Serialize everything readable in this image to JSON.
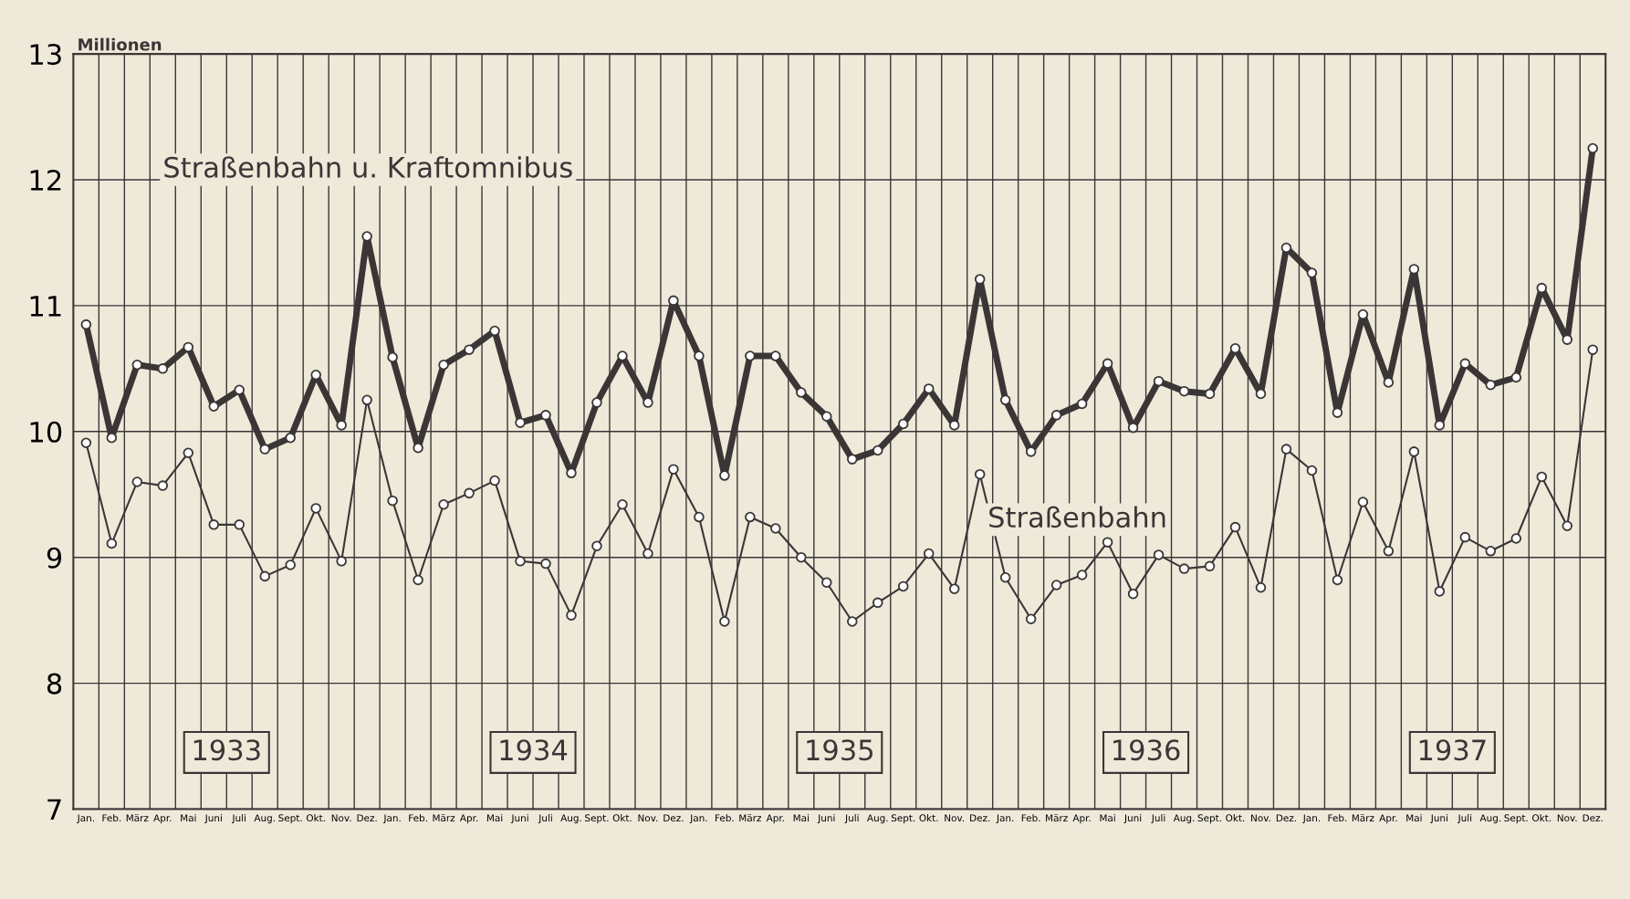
{
  "chart_data": {
    "type": "line",
    "ylabel": "Millionen",
    "categories": [
      "Jan.",
      "Feb.",
      "März",
      "Apr.",
      "Mai",
      "Juni",
      "Juli",
      "Aug.",
      "Sept.",
      "Okt.",
      "Nov.",
      "Dez.",
      "Jan.",
      "Feb.",
      "März",
      "Apr.",
      "Mai",
      "Juni",
      "Juli",
      "Aug.",
      "Sept.",
      "Okt.",
      "Nov.",
      "Dez.",
      "Jan.",
      "Feb.",
      "März",
      "Apr.",
      "Mai",
      "Juni",
      "Juli",
      "Aug.",
      "Sept.",
      "Okt.",
      "Nov.",
      "Dez.",
      "Jan.",
      "Feb.",
      "März",
      "Apr.",
      "Mai",
      "Juni",
      "Juli",
      "Aug.",
      "Sept.",
      "Okt.",
      "Nov.",
      "Dez.",
      "Jan.",
      "Feb.",
      "März",
      "Apr.",
      "Mai",
      "Juni",
      "Juli",
      "Aug.",
      "Sept.",
      "Okt.",
      "Nov.",
      "Dez."
    ],
    "series": [
      {
        "name": "Straßenbahn u. Kraftomnibus",
        "color": "#3b3636",
        "values": [
          10.85,
          9.95,
          10.53,
          10.5,
          10.67,
          10.2,
          10.33,
          9.86,
          9.95,
          10.45,
          10.05,
          11.55,
          10.59,
          9.87,
          10.53,
          10.65,
          10.8,
          10.07,
          10.13,
          9.67,
          10.23,
          10.6,
          10.23,
          11.04,
          10.6,
          9.65,
          10.6,
          10.6,
          10.31,
          10.12,
          9.78,
          9.85,
          10.06,
          10.34,
          10.05,
          11.21,
          10.25,
          9.84,
          10.13,
          10.22,
          10.54,
          10.03,
          10.4,
          10.32,
          10.3,
          10.66,
          10.3,
          11.46,
          11.26,
          10.15,
          10.93,
          10.39,
          11.29,
          10.05,
          10.54,
          10.37,
          10.43,
          11.14,
          10.73,
          12.25
        ]
      },
      {
        "name": "Straßenbahn",
        "color": "#3b3636",
        "values": [
          9.91,
          9.11,
          9.6,
          9.57,
          9.83,
          9.26,
          9.26,
          8.85,
          8.94,
          9.39,
          8.97,
          10.25,
          9.45,
          8.82,
          9.42,
          9.51,
          9.61,
          8.97,
          8.95,
          8.54,
          9.09,
          9.42,
          9.03,
          9.7,
          9.32,
          8.49,
          9.32,
          9.23,
          9.0,
          8.8,
          8.49,
          8.64,
          8.77,
          9.03,
          8.75,
          9.66,
          8.84,
          8.51,
          8.78,
          8.86,
          9.12,
          8.71,
          9.02,
          8.91,
          8.93,
          9.24,
          8.76,
          9.86,
          9.69,
          8.82,
          9.44,
          9.05,
          9.84,
          8.73,
          9.16,
          9.05,
          9.15,
          9.64,
          9.25,
          10.65
        ]
      }
    ],
    "ylim": [
      7,
      13
    ],
    "yticks": [
      7,
      8,
      9,
      10,
      11,
      12,
      13
    ],
    "grid": true,
    "marker": "circle",
    "line_style": "solid",
    "legend": false,
    "annotations": [
      "1933",
      "1934",
      "1935",
      "1936",
      "1937"
    ]
  }
}
